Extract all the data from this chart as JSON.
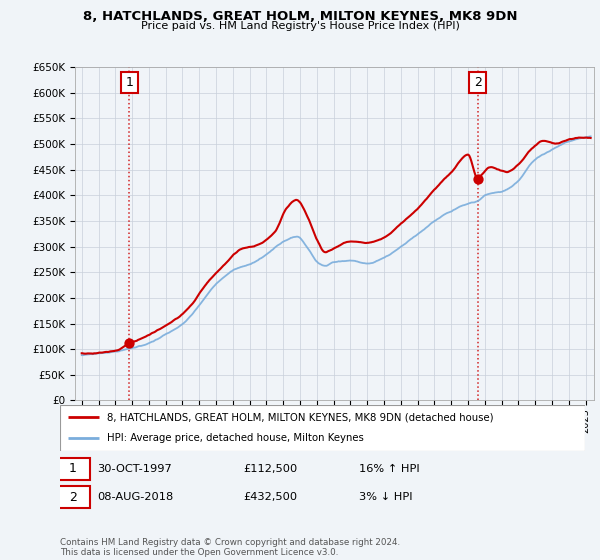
{
  "title": "8, HATCHLANDS, GREAT HOLM, MILTON KEYNES, MK8 9DN",
  "subtitle": "Price paid vs. HM Land Registry's House Price Index (HPI)",
  "ylim": [
    0,
    650000
  ],
  "yticks": [
    0,
    50000,
    100000,
    150000,
    200000,
    250000,
    300000,
    350000,
    400000,
    450000,
    500000,
    550000,
    600000,
    650000
  ],
  "ytick_labels": [
    "£0",
    "£50K",
    "£100K",
    "£150K",
    "£200K",
    "£250K",
    "£300K",
    "£350K",
    "£400K",
    "£450K",
    "£500K",
    "£550K",
    "£600K",
    "£650K"
  ],
  "house_color": "#cc0000",
  "hpi_color": "#7aaddc",
  "legend_house": "8, HATCHLANDS, GREAT HOLM, MILTON KEYNES, MK8 9DN (detached house)",
  "legend_hpi": "HPI: Average price, detached house, Milton Keynes",
  "annotation1_date": "30-OCT-1997",
  "annotation1_price": "£112,500",
  "annotation1_hpi": "16% ↑ HPI",
  "annotation2_date": "08-AUG-2018",
  "annotation2_price": "£432,500",
  "annotation2_hpi": "3% ↓ HPI",
  "footer": "Contains HM Land Registry data © Crown copyright and database right 2024.\nThis data is licensed under the Open Government Licence v3.0.",
  "sale1_year": 1997.83,
  "sale1_price": 112500,
  "sale2_year": 2018.58,
  "sale2_price": 432500,
  "bg_color": "#f0f4f8",
  "plot_bg": "#f0f4f8"
}
